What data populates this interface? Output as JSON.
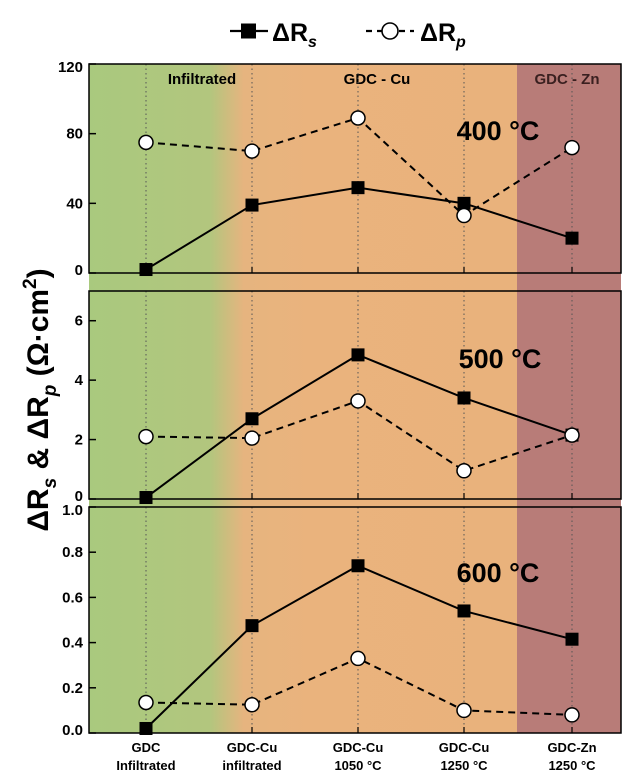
{
  "chart_data": {
    "type": "line",
    "categories": [
      [
        "GDC",
        "Infiltrated"
      ],
      [
        "GDC-Cu",
        "infiltrated"
      ],
      [
        "GDC-Cu",
        "1050 °C"
      ],
      [
        "GDC-Cu",
        "1250 °C"
      ],
      [
        "GDC-Zn",
        "1250 °C"
      ]
    ],
    "ylabel": {
      "main": "ΔR",
      "sub1": "s",
      "amp": " & ΔR",
      "sub2": "p",
      "unit": " (Ω·cm",
      "sup": "2",
      "close": ")"
    },
    "legend": [
      {
        "symbol": "ΔR",
        "sub": "s",
        "marker": "filled-square",
        "line": "solid"
      },
      {
        "symbol": "ΔR",
        "sub": "p",
        "marker": "open-circle",
        "line": "dashed"
      }
    ],
    "regions": [
      {
        "label": "Infiltrated",
        "from_category": 0,
        "to_category": 1,
        "color": "#a9c97e"
      },
      {
        "label": "GDC - Cu",
        "from_category": 1,
        "to_category": 3,
        "color": "#e9b37d"
      },
      {
        "label": "GDC - Zn",
        "from_category": 4,
        "to_category": 4,
        "color": "#b87c78"
      }
    ],
    "panels": [
      {
        "temperature": "400 °C",
        "ylim": [
          0,
          120
        ],
        "yticks": [
          "0",
          "40",
          "80",
          "120"
        ],
        "series": [
          {
            "name_key": "s",
            "values": [
              2,
              39,
              49,
              40,
              20
            ]
          },
          {
            "name_key": "p",
            "values": [
              75,
              70,
              89,
              33,
              72
            ]
          }
        ]
      },
      {
        "temperature": "500 °C",
        "ylim": [
          0,
          7
        ],
        "yticks": [
          "0",
          "2",
          "4",
          "6"
        ],
        "series": [
          {
            "name_key": "s",
            "values": [
              0.05,
              2.7,
              4.85,
              3.4,
              2.15
            ]
          },
          {
            "name_key": "p",
            "values": [
              2.1,
              2.05,
              3.3,
              0.95,
              2.15
            ]
          }
        ]
      },
      {
        "temperature": "600 °C",
        "ylim": [
          0,
          1.0
        ],
        "yticks": [
          "0.0",
          "0.2",
          "0.4",
          "0.6",
          "0.8",
          "1.0"
        ],
        "series": [
          {
            "name_key": "s",
            "values": [
              0.02,
              0.475,
              0.74,
              0.54,
              0.415
            ]
          },
          {
            "name_key": "p",
            "values": [
              0.135,
              0.125,
              0.33,
              0.1,
              0.08
            ]
          }
        ]
      }
    ],
    "grid": "vertical dotted lines at each category"
  }
}
